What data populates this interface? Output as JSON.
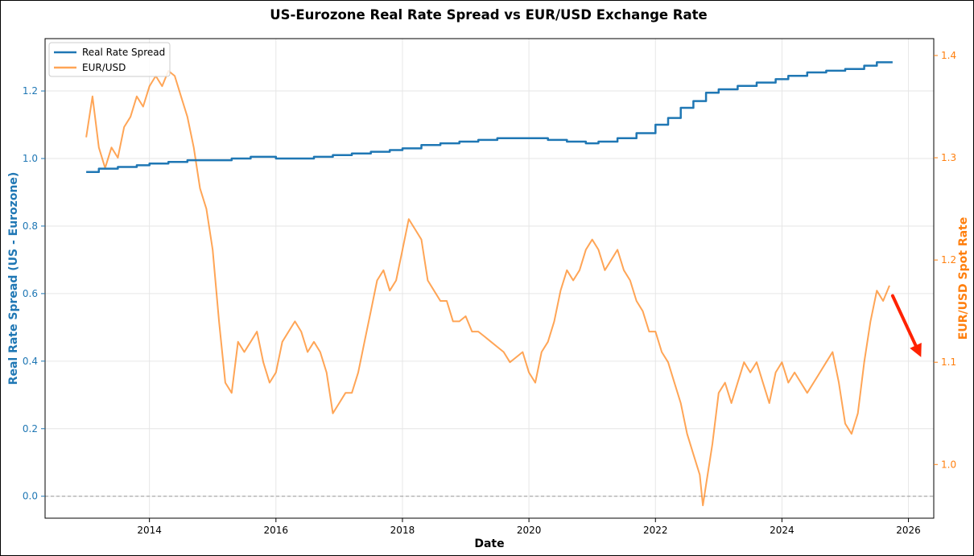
{
  "chart_data": {
    "type": "line",
    "title": "US-Eurozone Real Rate Spread vs EUR/USD Exchange Rate",
    "xlabel": "Date",
    "ylabel_left": "Real Rate Spread (US - Eurozone)",
    "ylabel_right": "EUR/USD Spot Rate",
    "xlim": [
      2012.35,
      2026.4
    ],
    "ylim_left": [
      -0.065,
      1.355
    ],
    "ylim_right": [
      0.9475,
      1.4165
    ],
    "x_ticks": [
      2014,
      2016,
      2018,
      2020,
      2022,
      2024,
      2026
    ],
    "y_ticks_left": [
      0.0,
      0.2,
      0.4,
      0.6,
      0.8,
      1.0,
      1.2
    ],
    "y_ticks_right": [
      1.0,
      1.1,
      1.2,
      1.3,
      1.4
    ],
    "x_tick_labels": [
      "2014",
      "2016",
      "2018",
      "2020",
      "2022",
      "2024",
      "2026"
    ],
    "y_tick_labels_left": [
      "0.0",
      "0.2",
      "0.4",
      "0.6",
      "0.8",
      "1.0",
      "1.2"
    ],
    "y_tick_labels_right": [
      "1.0",
      "1.1",
      "1.2",
      "1.3",
      "1.4"
    ],
    "grid": true,
    "reference_line_left": 0.0,
    "legend_position": "top-left",
    "arrow_annotation": {
      "from": [
        2025.75,
        1.165
      ],
      "to": [
        2026.2,
        1.105
      ],
      "color": "#ff2200"
    },
    "series": [
      {
        "name": "Real Rate Spread",
        "axis": "left",
        "color": "#1f77b4",
        "x": [
          2013.0,
          2013.2,
          2013.5,
          2013.8,
          2014.0,
          2014.3,
          2014.6,
          2014.9,
          2015.1,
          2015.3,
          2015.6,
          2016.0,
          2016.3,
          2016.6,
          2016.9,
          2017.2,
          2017.5,
          2017.8,
          2018.0,
          2018.3,
          2018.6,
          2018.9,
          2019.2,
          2019.5,
          2019.8,
          2020.0,
          2020.3,
          2020.6,
          2020.9,
          2021.1,
          2021.4,
          2021.7,
          2022.0,
          2022.2,
          2022.4,
          2022.6,
          2022.8,
          2023.0,
          2023.3,
          2023.6,
          2023.9,
          2024.1,
          2024.4,
          2024.7,
          2025.0,
          2025.3,
          2025.5,
          2025.75
        ],
        "values": [
          0.96,
          0.97,
          0.975,
          0.98,
          0.985,
          0.99,
          0.995,
          0.995,
          0.995,
          1.0,
          1.005,
          1.0,
          1.0,
          1.005,
          1.01,
          1.015,
          1.02,
          1.025,
          1.03,
          1.04,
          1.045,
          1.05,
          1.055,
          1.06,
          1.06,
          1.06,
          1.055,
          1.05,
          1.045,
          1.05,
          1.06,
          1.075,
          1.1,
          1.12,
          1.15,
          1.17,
          1.195,
          1.205,
          1.215,
          1.225,
          1.235,
          1.245,
          1.255,
          1.26,
          1.265,
          1.275,
          1.285,
          1.285
        ]
      },
      {
        "name": "EUR/USD",
        "axis": "right",
        "color": "#ff7f0e",
        "x": [
          2013.0,
          2013.1,
          2013.2,
          2013.3,
          2013.4,
          2013.5,
          2013.6,
          2013.7,
          2013.8,
          2013.9,
          2014.0,
          2014.1,
          2014.2,
          2014.3,
          2014.4,
          2014.5,
          2014.6,
          2014.7,
          2014.8,
          2014.9,
          2015.0,
          2015.1,
          2015.2,
          2015.3,
          2015.4,
          2015.5,
          2015.6,
          2015.7,
          2015.8,
          2015.9,
          2016.0,
          2016.1,
          2016.2,
          2016.3,
          2016.4,
          2016.5,
          2016.6,
          2016.7,
          2016.8,
          2016.9,
          2017.0,
          2017.1,
          2017.2,
          2017.3,
          2017.4,
          2017.5,
          2017.6,
          2017.7,
          2017.8,
          2017.9,
          2018.0,
          2018.1,
          2018.2,
          2018.3,
          2018.4,
          2018.5,
          2018.6,
          2018.7,
          2018.8,
          2018.9,
          2019.0,
          2019.1,
          2019.2,
          2019.3,
          2019.4,
          2019.5,
          2019.6,
          2019.7,
          2019.8,
          2019.9,
          2020.0,
          2020.1,
          2020.2,
          2020.3,
          2020.4,
          2020.5,
          2020.6,
          2020.7,
          2020.8,
          2020.9,
          2021.0,
          2021.1,
          2021.2,
          2021.3,
          2021.4,
          2021.5,
          2021.6,
          2021.7,
          2021.8,
          2021.9,
          2022.0,
          2022.1,
          2022.2,
          2022.3,
          2022.4,
          2022.5,
          2022.6,
          2022.7,
          2022.75,
          2022.8,
          2022.9,
          2023.0,
          2023.1,
          2023.2,
          2023.3,
          2023.4,
          2023.5,
          2023.6,
          2023.7,
          2023.8,
          2023.9,
          2024.0,
          2024.1,
          2024.2,
          2024.3,
          2024.4,
          2024.5,
          2024.6,
          2024.7,
          2024.8,
          2024.9,
          2025.0,
          2025.1,
          2025.2,
          2025.3,
          2025.4,
          2025.5,
          2025.6,
          2025.7
        ],
        "values": [
          1.32,
          1.36,
          1.31,
          1.29,
          1.31,
          1.3,
          1.33,
          1.34,
          1.36,
          1.35,
          1.37,
          1.38,
          1.37,
          1.385,
          1.38,
          1.36,
          1.34,
          1.31,
          1.27,
          1.25,
          1.21,
          1.14,
          1.08,
          1.07,
          1.12,
          1.11,
          1.12,
          1.13,
          1.1,
          1.08,
          1.09,
          1.12,
          1.13,
          1.14,
          1.13,
          1.11,
          1.12,
          1.11,
          1.09,
          1.05,
          1.06,
          1.07,
          1.07,
          1.09,
          1.12,
          1.15,
          1.18,
          1.19,
          1.17,
          1.18,
          1.21,
          1.24,
          1.23,
          1.22,
          1.18,
          1.17,
          1.16,
          1.16,
          1.14,
          1.14,
          1.145,
          1.13,
          1.13,
          1.125,
          1.12,
          1.115,
          1.11,
          1.1,
          1.105,
          1.11,
          1.09,
          1.08,
          1.11,
          1.12,
          1.14,
          1.17,
          1.19,
          1.18,
          1.19,
          1.21,
          1.22,
          1.21,
          1.19,
          1.2,
          1.21,
          1.19,
          1.18,
          1.16,
          1.15,
          1.13,
          1.13,
          1.11,
          1.1,
          1.08,
          1.06,
          1.03,
          1.01,
          0.99,
          0.96,
          0.98,
          1.02,
          1.07,
          1.08,
          1.06,
          1.08,
          1.1,
          1.09,
          1.1,
          1.08,
          1.06,
          1.09,
          1.1,
          1.08,
          1.09,
          1.08,
          1.07,
          1.08,
          1.09,
          1.1,
          1.11,
          1.08,
          1.04,
          1.03,
          1.05,
          1.1,
          1.14,
          1.17,
          1.16,
          1.175
        ]
      }
    ]
  }
}
